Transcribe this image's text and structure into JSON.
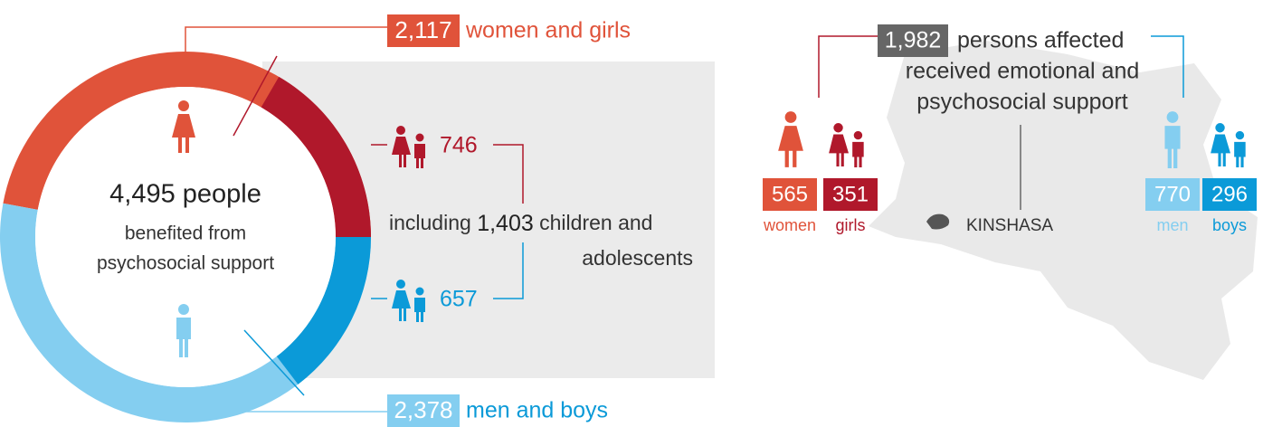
{
  "ring": {
    "total": "4,495 people",
    "subtitle": [
      "benefited from",
      "psychosocial support"
    ],
    "women_and_girls": {
      "value": 2117,
      "label": "2,117",
      "text": "women and girls"
    },
    "men_and_boys": {
      "value": 2378,
      "label": "2,378",
      "text": "men and boys"
    },
    "girls": 746,
    "boys": 657,
    "children": {
      "prefix": "including",
      "label": "1,403",
      "text": [
        "children and",
        "adolescents"
      ]
    }
  },
  "support": {
    "label": "1,982",
    "text": [
      "persons affected",
      "received emotional and",
      "psychosocial support"
    ],
    "groups": [
      {
        "name": "women",
        "value": 565,
        "color": "#e0533a"
      },
      {
        "name": "girls",
        "value": 351,
        "color": "#b0182b"
      },
      {
        "name": "men",
        "value": 770,
        "color": "#84cef0"
      },
      {
        "name": "boys",
        "value": 296,
        "color": "#0b9ad8"
      }
    ],
    "location": "KINSHASA"
  },
  "colors": {
    "women": "#e0533a",
    "girls": "#b0182b",
    "men": "#84cef0",
    "boys": "#0b9ad8"
  }
}
